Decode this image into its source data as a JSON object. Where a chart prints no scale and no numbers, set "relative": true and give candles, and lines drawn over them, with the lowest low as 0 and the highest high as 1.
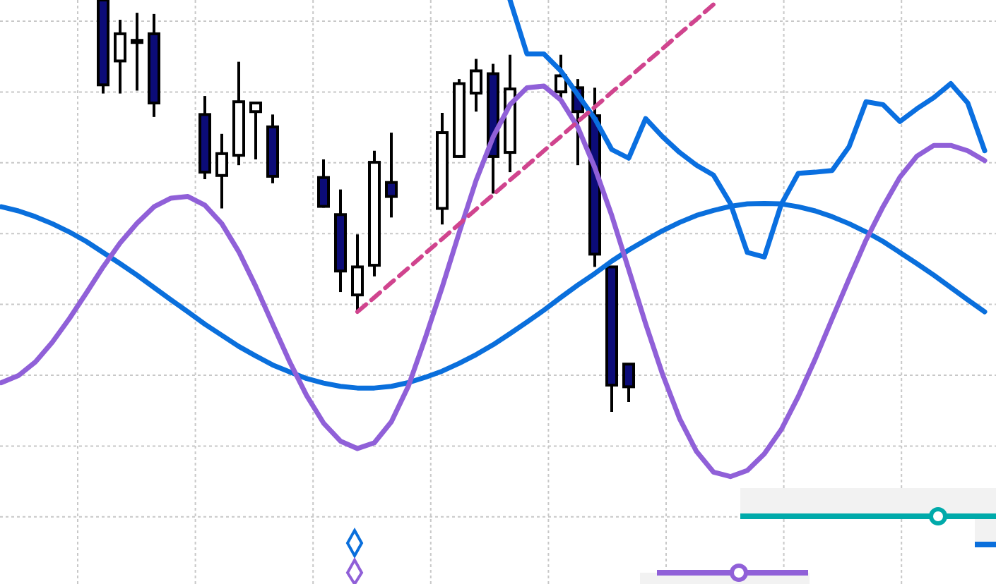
{
  "chart_data": {
    "type": "candlestick",
    "relative": true,
    "grid": true,
    "categories": [
      null,
      null,
      null,
      null,
      null,
      null,
      null,
      null,
      null,
      null,
      null,
      null,
      null,
      null,
      null,
      null,
      null,
      null,
      null,
      null,
      null,
      null,
      null,
      null,
      null,
      null,
      null,
      null,
      null,
      null,
      null,
      null,
      null,
      null,
      null,
      null,
      null,
      null,
      null,
      null,
      null,
      null,
      null,
      null,
      null,
      null,
      null,
      null,
      null,
      null,
      null,
      null,
      null,
      null,
      null,
      null,
      null,
      null,
      null,
      null
    ],
    "ohlc": [
      null,
      null,
      null,
      null,
      null,
      null,
      [
        1,
        1,
        0.773,
        0.794
      ],
      [
        0.852,
        0.952,
        0.773,
        0.918
      ],
      [
        0.901,
        0.969,
        0.78,
        0.902
      ],
      [
        0.918,
        0.966,
        0.716,
        0.75
      ],
      null,
      null,
      [
        0.722,
        0.767,
        0.565,
        0.582
      ],
      [
        0.574,
        0.675,
        0.494,
        0.627
      ],
      [
        0.623,
        0.85,
        0.599,
        0.753
      ],
      [
        0.729,
        0.75,
        0.613,
        0.75
      ],
      [
        0.692,
        0.722,
        0.555,
        0.572
      ],
      null,
      null,
      [
        0.569,
        0.613,
        0.496,
        0.499
      ],
      [
        0.479,
        0.54,
        0.291,
        0.342
      ],
      [
        0.284,
        0.431,
        0.247,
        0.352
      ],
      [
        0.356,
        0.634,
        0.329,
        0.606
      ],
      [
        0.557,
        0.678,
        0.472,
        0.523
      ],
      null,
      null,
      [
        0.494,
        0.726,
        0.455,
        0.678
      ],
      [
        0.62,
        0.808,
        0.617,
        0.797
      ],
      [
        0.774,
        0.857,
        0.729,
        0.828
      ],
      [
        0.821,
        0.845,
        0.53,
        0.62
      ],
      [
        0.63,
        0.867,
        0.582,
        0.784
      ],
      null,
      null,
      [
        0.777,
        0.867,
        0.757,
        0.816
      ],
      [
        0.787,
        0.808,
        0.599,
        0.729
      ],
      [
        0.719,
        0.787,
        0.352,
        0.383
      ],
      [
        0.352,
        0.352,
        0,
        0.065
      ],
      [
        0.116,
        0.116,
        0.024,
        0.061
      ],
      null,
      null,
      null,
      null,
      null,
      null,
      null,
      null,
      null,
      null,
      null,
      null,
      null,
      null,
      null,
      null,
      null,
      null,
      null,
      null,
      null,
      null
    ],
    "series": [
      {
        "type": "line",
        "color": "#0a6fdc",
        "values": [
          0.498,
          0.488,
          0.474,
          0.457,
          0.437,
          0.414,
          0.387,
          0.36,
          0.332,
          0.302,
          0.272,
          0.243,
          0.213,
          0.186,
          0.159,
          0.136,
          0.114,
          0.097,
          0.081,
          0.07,
          0.062,
          0.058,
          0.058,
          0.062,
          0.071,
          0.084,
          0.099,
          0.118,
          0.139,
          0.163,
          0.19,
          0.218,
          0.247,
          0.278,
          0.308,
          0.336,
          0.366,
          0.393,
          0.417,
          0.44,
          0.46,
          0.477,
          0.489,
          0.499,
          0.505,
          0.506,
          0.505,
          0.498,
          0.488,
          0.474,
          0.457,
          0.437,
          0.414,
          0.387,
          0.36,
          0.332,
          0.302,
          0.272,
          0.243,
          null
        ]
      },
      {
        "type": "line",
        "color": "#9060d8",
        "values": [
          0.071,
          0.088,
          0.121,
          0.169,
          0.226,
          0.288,
          0.352,
          0.41,
          0.458,
          0.498,
          0.519,
          0.523,
          0.502,
          0.457,
          0.389,
          0.305,
          0.213,
          0.122,
          0.04,
          -0.027,
          -0.071,
          -0.089,
          -0.075,
          -0.024,
          0.062,
          0.179,
          0.303,
          0.435,
          0.562,
          0.667,
          0.746,
          0.787,
          0.791,
          0.757,
          0.691,
          0.593,
          0.477,
          0.346,
          0.214,
          0.091,
          -0.016,
          -0.096,
          -0.146,
          -0.157,
          -0.142,
          -0.102,
          -0.043,
          0.037,
          0.128,
          0.226,
          0.323,
          0.417,
          0.498,
          0.57,
          0.621,
          0.647,
          0.647,
          0.634,
          0.61,
          null
        ]
      },
      {
        "type": "line",
        "color": "#0a6fe0",
        "values": [
          null,
          null,
          null,
          null,
          null,
          null,
          null,
          null,
          null,
          null,
          null,
          null,
          null,
          null,
          null,
          null,
          null,
          null,
          null,
          null,
          null,
          null,
          null,
          null,
          null,
          null,
          null,
          null,
          null,
          null,
          1,
          0.869,
          0.869,
          0.828,
          0.77,
          0.712,
          0.637,
          0.616,
          0.712,
          0.668,
          0.63,
          0.599,
          0.575,
          0.506,
          0.387,
          0.376,
          0.504,
          0.579,
          0.582,
          0.586,
          0.644,
          0.753,
          0.746,
          0.705,
          0.736,
          0.763,
          0.797,
          0.75,
          0.634,
          null
        ]
      },
      {
        "type": "line",
        "color": "#d0448e",
        "line_style": "dashed",
        "values": [
          null,
          null,
          null,
          null,
          null,
          null,
          null,
          null,
          null,
          null,
          null,
          null,
          null,
          null,
          null,
          null,
          null,
          null,
          null,
          null,
          null,
          0.243,
          0.278,
          0.314,
          0.349,
          0.385,
          0.42,
          0.456,
          0.492,
          0.527,
          0.563,
          0.598,
          0.634,
          0.669,
          0.705,
          0.74,
          0.776,
          0.811,
          0.847,
          0.882,
          0.918,
          0.953,
          0.989,
          null,
          null,
          null,
          null,
          null,
          null,
          null,
          null,
          null,
          null,
          null,
          null,
          null,
          null,
          null,
          null,
          null
        ]
      }
    ]
  }
}
